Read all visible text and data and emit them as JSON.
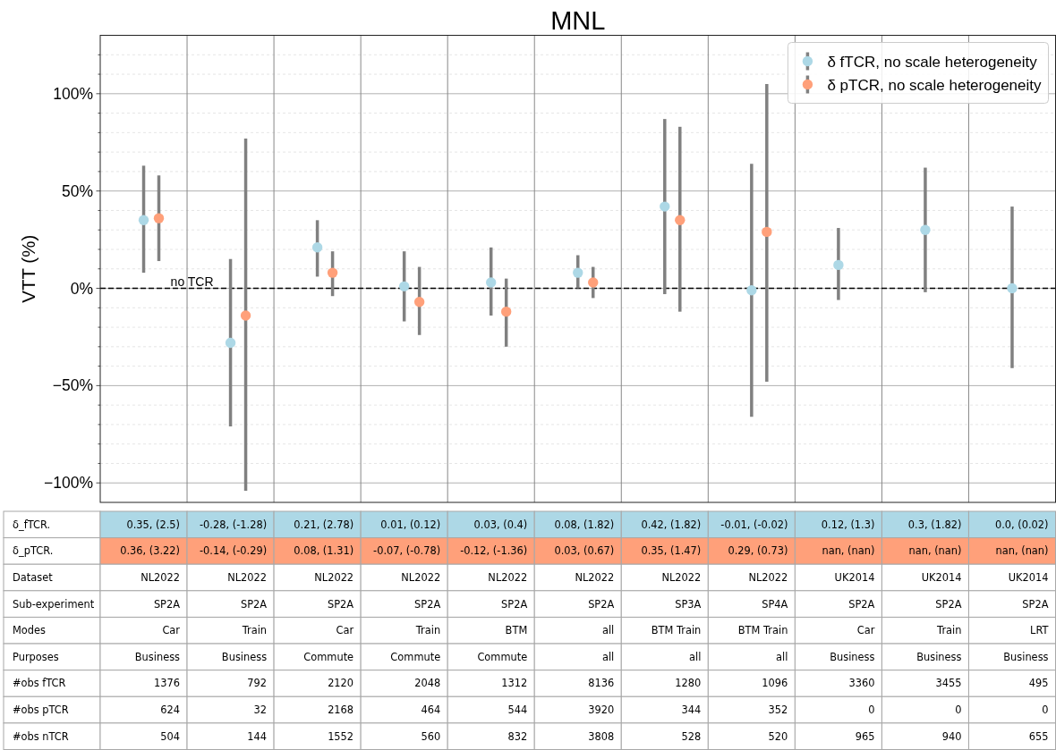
{
  "chart_data": [
    {
      "type": "scatter",
      "title": "MNL",
      "ylabel": "VTT (%)",
      "categories": [
        null,
        null,
        null,
        null,
        null,
        null,
        null,
        null,
        null,
        null,
        null
      ],
      "series": [
        {
          "name": "δ fTCR, no scale heterogeneity",
          "color": "#add8e6",
          "values": [
            35,
            -28,
            21,
            1,
            3,
            8,
            42,
            -1,
            12,
            30,
            0
          ],
          "errors": [
            [
              8,
              63
            ],
            [
              -71,
              15
            ],
            [
              6,
              35
            ],
            [
              -17,
              19
            ],
            [
              -14,
              21
            ],
            [
              0,
              17
            ],
            [
              -3,
              87
            ],
            [
              -66,
              64
            ],
            [
              -6,
              31
            ],
            [
              -2,
              62
            ],
            [
              -41,
              42
            ]
          ]
        },
        {
          "name": "δ pTCR, no scale heterogeneity",
          "color": "#ffa07a",
          "values": [
            36,
            -14,
            8,
            -7,
            -12,
            3,
            35,
            29,
            null,
            null,
            null
          ],
          "errors": [
            [
              14,
              58
            ],
            [
              -104,
              77
            ],
            [
              -4,
              19
            ],
            [
              -24,
              11
            ],
            [
              -30,
              5
            ],
            [
              -5,
              11
            ],
            [
              -12,
              83
            ],
            [
              -48,
              105
            ],
            null,
            null,
            null
          ]
        }
      ],
      "ylim": [
        -110,
        130
      ],
      "yticks": [
        {
          "value": -100,
          "label": "−100%"
        },
        {
          "value": -90,
          "label": null
        },
        {
          "value": -80,
          "label": null
        },
        {
          "value": -70,
          "label": null
        },
        {
          "value": -60,
          "label": null
        },
        {
          "value": -50,
          "label": "−50%"
        },
        {
          "value": -40,
          "label": null
        },
        {
          "value": -30,
          "label": null
        },
        {
          "value": -20,
          "label": null
        },
        {
          "value": -10,
          "label": null
        },
        {
          "value": 0,
          "label": "0%"
        },
        {
          "value": 10,
          "label": null
        },
        {
          "value": 20,
          "label": null
        },
        {
          "value": 30,
          "label": null
        },
        {
          "value": 40,
          "label": null
        },
        {
          "value": 50,
          "label": "50%"
        },
        {
          "value": 60,
          "label": null
        },
        {
          "value": 70,
          "label": null
        },
        {
          "value": 80,
          "label": null
        },
        {
          "value": 90,
          "label": null
        },
        {
          "value": 100,
          "label": "100%"
        },
        {
          "value": 110,
          "label": null
        },
        {
          "value": 120,
          "label": null
        }
      ],
      "grid": true,
      "legend": "top right",
      "marker": "circle",
      "ref_lines": [
        {
          "axis": "y",
          "value": 0,
          "label": "no TCR",
          "color": "#000000",
          "line_style": "dashed"
        }
      ]
    },
    {
      "type": "other",
      "y_categories": [
        "δ_fTCR.",
        "δ_pTCR.",
        "Dataset",
        "Sub-experiment",
        "Modes",
        "Purposes",
        "#obs fTCR",
        "#obs pTCR",
        "#obs nTCR"
      ],
      "colors": [
        "#add8e6",
        "#ffa07a",
        "#ffffff",
        "#ffffff",
        "#ffffff",
        "#ffffff",
        "#ffffff",
        "#ffffff",
        "#ffffff"
      ],
      "cell_labels": [
        [
          "0.35, (2.5)",
          "-0.28, (-1.28)",
          "0.21, (2.78)",
          "0.01, (0.12)",
          "0.03, (0.4)",
          "0.08, (1.82)",
          "0.42, (1.82)",
          "-0.01, (-0.02)",
          "0.12, (1.3)",
          "0.3, (1.82)",
          "0.0, (0.02)"
        ],
        [
          "0.36, (3.22)",
          "-0.14, (-0.29)",
          "0.08, (1.31)",
          "-0.07, (-0.78)",
          "-0.12, (-1.36)",
          "0.03, (0.67)",
          "0.35, (1.47)",
          "0.29, (0.73)",
          "nan, (nan)",
          "nan, (nan)",
          "nan, (nan)"
        ],
        [
          "NL2022",
          "NL2022",
          "NL2022",
          "NL2022",
          "NL2022",
          "NL2022",
          "NL2022",
          "NL2022",
          "UK2014",
          "UK2014",
          "UK2014"
        ],
        [
          "SP2A",
          "SP2A",
          "SP2A",
          "SP2A",
          "SP2A",
          "SP2A",
          "SP3A",
          "SP4A",
          "SP2A",
          "SP2A",
          "SP2A"
        ],
        [
          "Car",
          "Train",
          "Car",
          "Train",
          "BTM",
          "all",
          "BTM Train",
          "BTM Train",
          "Car",
          "Train",
          "LRT"
        ],
        [
          "Business",
          "Business",
          "Commute",
          "Commute",
          "Commute",
          "all",
          "all",
          "all",
          "Business",
          "Business",
          "Business"
        ],
        [
          "1376",
          "792",
          "2120",
          "2048",
          "1312",
          "8136",
          "1280",
          "1096",
          "3360",
          "3455",
          "495"
        ],
        [
          "624",
          "32",
          "2168",
          "464",
          "544",
          "3920",
          "344",
          "352",
          "0",
          "0",
          "0"
        ],
        [
          "504",
          "144",
          "1552",
          "560",
          "832",
          "3808",
          "528",
          "520",
          "965",
          "940",
          "655"
        ]
      ]
    }
  ]
}
